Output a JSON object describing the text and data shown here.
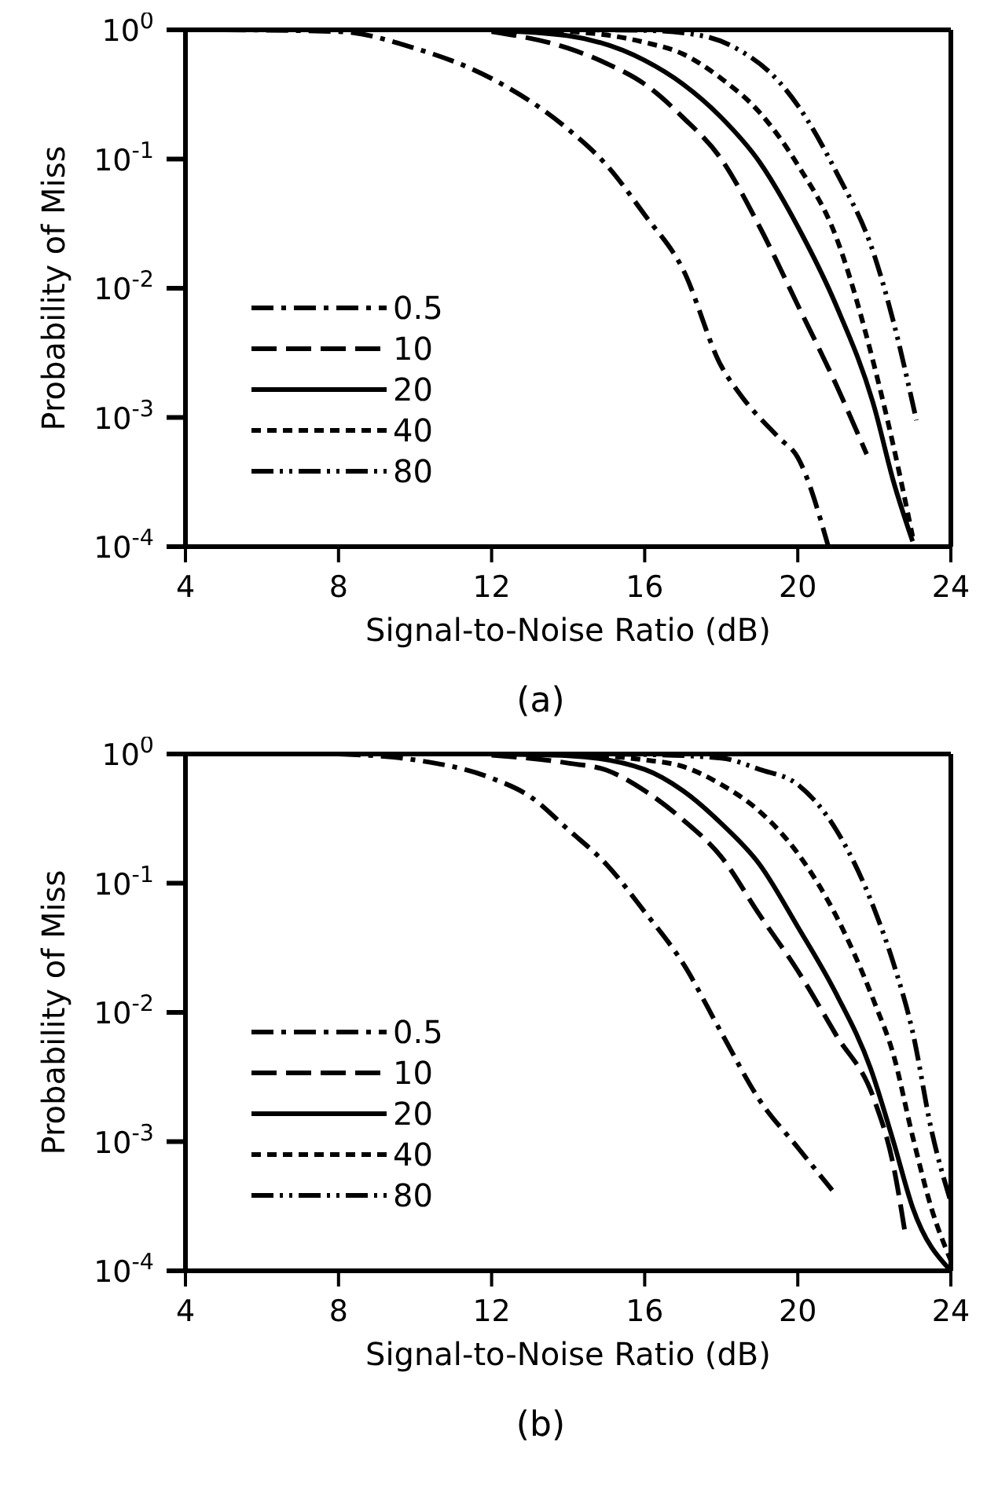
{
  "chart_data": [
    {
      "type": "line",
      "xlabel": "Signal-to-Noise Ratio  (dB)",
      "ylabel": "Probability of Miss",
      "annotations": [
        "(a)"
      ],
      "log": "y",
      "xlim": [
        4,
        24
      ],
      "xticks": [
        4,
        8,
        12,
        16,
        20,
        24
      ],
      "ylim": [
        0.0001,
        1
      ],
      "yticks": [
        {
          "value": 1,
          "label": "10$^{0}$"
        },
        {
          "value": 0.1,
          "label": "10$^{-1}$"
        },
        {
          "value": 0.01,
          "label": "10$^{-2}$"
        },
        {
          "value": 0.001,
          "label": "10$^{-3}$"
        },
        {
          "value": 0.0001,
          "label": "10$^{-4}$"
        }
      ],
      "legend": "left",
      "marker": "none",
      "series": [
        {
          "name": "0.5",
          "color": "#000000",
          "line_style": "dashdot",
          "x": [
            5,
            8,
            10,
            12,
            14,
            15,
            16,
            17,
            18,
            18.5,
            19.5,
            20,
            20.8
          ],
          "values": [
            1,
            0.97,
            0.72,
            0.42,
            0.17,
            0.09,
            0.037,
            0.014,
            0.0025,
            0.0015,
            0.0007,
            0.00049,
            0.0001
          ]
        },
        {
          "name": "10",
          "color": "#000000",
          "line_style": "dashed",
          "x": [
            12,
            14,
            15,
            16,
            17,
            18,
            19,
            20,
            21,
            21.8
          ],
          "values": [
            0.97,
            0.72,
            0.55,
            0.38,
            0.21,
            0.1,
            0.03,
            0.0074,
            0.0018,
            0.00052
          ]
        },
        {
          "name": "20",
          "color": "#000000",
          "line_style": "solid",
          "x": [
            12,
            14,
            16,
            17,
            18,
            19,
            20,
            21,
            22,
            22.5,
            23
          ],
          "values": [
            0.99,
            0.9,
            0.58,
            0.38,
            0.21,
            0.095,
            0.03,
            0.0074,
            0.0012,
            0.00032,
            0.00011
          ]
        },
        {
          "name": "40",
          "color": "#000000",
          "line_style": "dotted",
          "x": [
            12,
            14,
            16,
            17,
            18,
            19,
            20,
            21,
            22,
            22.5,
            23
          ],
          "values": [
            1,
            0.97,
            0.8,
            0.65,
            0.42,
            0.23,
            0.09,
            0.025,
            0.0025,
            0.0006,
            0.00012
          ]
        },
        {
          "name": "80",
          "color": "#000000",
          "line_style": "dashdotdot",
          "x": [
            14,
            16,
            17.5,
            18.5,
            19.5,
            20,
            21,
            22,
            22.5,
            23.1
          ],
          "values": [
            1,
            0.99,
            0.9,
            0.69,
            0.4,
            0.26,
            0.08,
            0.018,
            0.0055,
            0.00095
          ]
        }
      ]
    },
    {
      "type": "line",
      "xlabel": "Signal-to-Noise Ratio  (dB)",
      "ylabel": "Probability of Miss",
      "annotations": [
        "(b)"
      ],
      "log": "y",
      "xlim": [
        4,
        24
      ],
      "xticks": [
        4,
        8,
        12,
        16,
        20,
        24
      ],
      "ylim": [
        0.0001,
        1
      ],
      "yticks": [
        {
          "value": 1,
          "label": "10$^{0}$"
        },
        {
          "value": 0.1,
          "label": "10$^{-1}$"
        },
        {
          "value": 0.01,
          "label": "10$^{-2}$"
        },
        {
          "value": 0.001,
          "label": "10$^{-3}$"
        },
        {
          "value": 0.0001,
          "label": "10$^{-4}$"
        }
      ],
      "legend": "left",
      "marker": "none",
      "series": [
        {
          "name": "0.5",
          "color": "#000000",
          "line_style": "dashdot",
          "x": [
            8,
            10,
            12,
            13,
            14,
            15,
            16,
            17,
            18,
            19,
            20,
            20.9
          ],
          "values": [
            1,
            0.9,
            0.65,
            0.47,
            0.26,
            0.14,
            0.06,
            0.024,
            0.007,
            0.0021,
            0.0009,
            0.00042
          ]
        },
        {
          "name": "10",
          "color": "#000000",
          "line_style": "dashed",
          "x": [
            12,
            14,
            15,
            16,
            17,
            18,
            19,
            20,
            21,
            22,
            22.5,
            22.8
          ],
          "values": [
            0.98,
            0.85,
            0.75,
            0.52,
            0.31,
            0.16,
            0.057,
            0.021,
            0.0067,
            0.0021,
            0.00065,
            0.0002
          ]
        },
        {
          "name": "20",
          "color": "#000000",
          "line_style": "solid",
          "x": [
            12,
            14,
            16,
            17,
            18,
            19,
            20,
            21,
            21.9,
            22.5,
            23,
            24
          ],
          "values": [
            1,
            0.97,
            0.76,
            0.52,
            0.29,
            0.14,
            0.046,
            0.014,
            0.0037,
            0.001,
            0.00031,
            0.0001
          ]
        },
        {
          "name": "40",
          "color": "#000000",
          "line_style": "dotted",
          "x": [
            14,
            16,
            17,
            18,
            19,
            20,
            21,
            22,
            22.5,
            23,
            23.5,
            24
          ],
          "values": [
            0.99,
            0.9,
            0.8,
            0.58,
            0.36,
            0.17,
            0.056,
            0.012,
            0.0047,
            0.0011,
            0.0003,
            0.00012
          ]
        },
        {
          "name": "80",
          "color": "#000000",
          "line_style": "dashdotdot",
          "x": [
            14,
            16,
            18,
            19,
            20,
            21,
            22,
            22.5,
            23,
            23.5,
            24
          ],
          "values": [
            1,
            0.99,
            0.93,
            0.76,
            0.58,
            0.26,
            0.063,
            0.024,
            0.0071,
            0.0012,
            0.00034
          ]
        }
      ]
    }
  ]
}
